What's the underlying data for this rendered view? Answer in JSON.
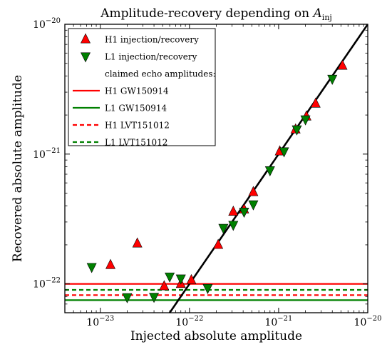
{
  "chart_data": {
    "type": "scatter",
    "title": "Amplitude-recovery depending on ",
    "title_math": "A",
    "title_math_sub": "inj",
    "xlabel": "Injected absolute amplitude",
    "ylabel": "Recovered absolute amplitude",
    "x_scale": "log",
    "y_scale": "log",
    "xlim": [
      4e-24,
      1e-20
    ],
    "ylim": [
      6e-23,
      1e-20
    ],
    "x_ticks": [
      {
        "value": 1e-23,
        "base": "10",
        "exp": "−23"
      },
      {
        "value": 1e-22,
        "base": "10",
        "exp": "−22"
      },
      {
        "value": 1e-21,
        "base": "10",
        "exp": "−21"
      },
      {
        "value": 1e-20,
        "base": "10",
        "exp": "−20"
      }
    ],
    "y_ticks": [
      {
        "value": 1e-22,
        "base": "10",
        "exp": "−22"
      },
      {
        "value": 1e-21,
        "base": "10",
        "exp": "−21"
      },
      {
        "value": 1e-20,
        "base": "10",
        "exp": "−20"
      }
    ],
    "grid": false,
    "legend_position": "top-left",
    "legend_header": "claimed echo amplitudes:",
    "series": [
      {
        "name": "H1 injection/recovery",
        "marker": "triangle-up",
        "color": "#ff0000",
        "points": [
          {
            "x": 1.3e-23,
            "y": 1.4e-22
          },
          {
            "x": 2.6e-23,
            "y": 2.05e-22
          },
          {
            "x": 5.2e-23,
            "y": 9.6e-23
          },
          {
            "x": 8e-23,
            "y": 1e-22
          },
          {
            "x": 1.05e-22,
            "y": 1.07e-22
          },
          {
            "x": 2.1e-22,
            "y": 2e-22
          },
          {
            "x": 3.1e-22,
            "y": 3.6e-22
          },
          {
            "x": 4.1e-22,
            "y": 3.75e-22
          },
          {
            "x": 5.2e-22,
            "y": 5.1e-22
          },
          {
            "x": 1.03e-21,
            "y": 1.05e-21
          },
          {
            "x": 1.55e-21,
            "y": 1.55e-21
          },
          {
            "x": 2.05e-21,
            "y": 1.95e-21
          },
          {
            "x": 2.6e-21,
            "y": 2.45e-21
          },
          {
            "x": 5.2e-21,
            "y": 4.8e-21
          }
        ]
      },
      {
        "name": "L1 injection/recovery",
        "marker": "triangle-down",
        "color": "#008000",
        "points": [
          {
            "x": 8e-24,
            "y": 1.35e-22
          },
          {
            "x": 2e-23,
            "y": 7.9e-23
          },
          {
            "x": 4e-23,
            "y": 7.95e-23
          },
          {
            "x": 6e-23,
            "y": 1.14e-22
          },
          {
            "x": 8e-23,
            "y": 1.1e-22
          },
          {
            "x": 1.6e-22,
            "y": 9.3e-23
          },
          {
            "x": 2.4e-22,
            "y": 2.7e-22
          },
          {
            "x": 3.1e-22,
            "y": 2.85e-22
          },
          {
            "x": 4.1e-22,
            "y": 3.6e-22
          },
          {
            "x": 5.2e-22,
            "y": 4.1e-22
          },
          {
            "x": 8e-22,
            "y": 7.5e-22
          },
          {
            "x": 1.15e-21,
            "y": 1.05e-21
          },
          {
            "x": 1.6e-21,
            "y": 1.55e-21
          },
          {
            "x": 2e-21,
            "y": 1.85e-21
          },
          {
            "x": 4e-21,
            "y": 3.8e-21
          }
        ]
      }
    ],
    "reference_line": {
      "name": "y = x",
      "color": "#000000"
    },
    "hlines": [
      {
        "name": "H1 GW150914",
        "y": 1e-22,
        "color": "#ff0000",
        "dashed": false
      },
      {
        "name": "L1 GW150914",
        "y": 7.5e-23,
        "color": "#008000",
        "dashed": false
      },
      {
        "name": "H1 LVT151012",
        "y": 8.2e-23,
        "color": "#ff0000",
        "dashed": true
      },
      {
        "name": "L1 LVT151012",
        "y": 9e-23,
        "color": "#008000",
        "dashed": true
      }
    ]
  }
}
